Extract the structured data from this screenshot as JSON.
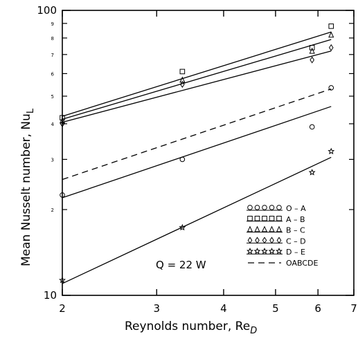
{
  "chart_data": {
    "type": "line",
    "xlabel": "Reynolds number, Re",
    "xlabel_subscript": "D",
    "ylabel": "Mean Nusselt number, Nu",
    "ylabel_subscript": "L",
    "x_scale": "log",
    "y_scale": "log",
    "xlim": [
      2,
      7
    ],
    "ylim": [
      10,
      100
    ],
    "x_ticks": [
      "2",
      "3",
      "4",
      "5",
      "6",
      "7"
    ],
    "y_ticks_major": [
      "10",
      "100"
    ],
    "y_ticks_minor": [
      "2",
      "3",
      "4",
      "5",
      "6",
      "7",
      "8",
      "9"
    ],
    "annotation": "Q  =  22  W",
    "grid": false,
    "legend_position": "bottom-right",
    "series": [
      {
        "name": "O  –  A",
        "marker": "circle",
        "color": "#000000",
        "points": [
          [
            2.0,
            22.5
          ],
          [
            3.35,
            30
          ],
          [
            5.85,
            39
          ],
          [
            6.35,
            53.5
          ]
        ],
        "fit": [
          [
            2.0,
            22
          ],
          [
            6.35,
            46
          ]
        ]
      },
      {
        "name": "A  –  B",
        "marker": "square",
        "color": "#000000",
        "points": [
          [
            2.0,
            42
          ],
          [
            3.35,
            61
          ],
          [
            5.85,
            74
          ],
          [
            6.35,
            88
          ]
        ],
        "fit": [
          [
            2.0,
            42.5
          ],
          [
            6.35,
            84
          ]
        ]
      },
      {
        "name": "B  –  C",
        "marker": "triangle",
        "color": "#000000",
        "points": [
          [
            2.0,
            41
          ],
          [
            3.35,
            57
          ],
          [
            5.85,
            72
          ],
          [
            6.35,
            82
          ]
        ],
        "fit": [
          [
            2.0,
            41.5
          ],
          [
            6.35,
            79
          ]
        ]
      },
      {
        "name": "C  –  D",
        "marker": "diamond",
        "color": "#000000",
        "points": [
          [
            2.0,
            40
          ],
          [
            3.35,
            55
          ],
          [
            5.85,
            67
          ],
          [
            6.35,
            74
          ]
        ],
        "fit": [
          [
            2.0,
            40.5
          ],
          [
            6.35,
            72
          ]
        ]
      },
      {
        "name": "D  –  E",
        "marker": "star",
        "color": "#000000",
        "points": [
          [
            2.0,
            11.3
          ],
          [
            3.35,
            17.3
          ],
          [
            5.85,
            27
          ],
          [
            6.35,
            32
          ]
        ],
        "fit": [
          [
            2.0,
            11
          ],
          [
            6.35,
            30.5
          ]
        ]
      },
      {
        "name": "OABCDE",
        "marker": "none",
        "dashed": true,
        "color": "#000000",
        "points": [],
        "fit": [
          [
            2.0,
            25.5
          ],
          [
            6.35,
            53
          ]
        ]
      }
    ]
  }
}
